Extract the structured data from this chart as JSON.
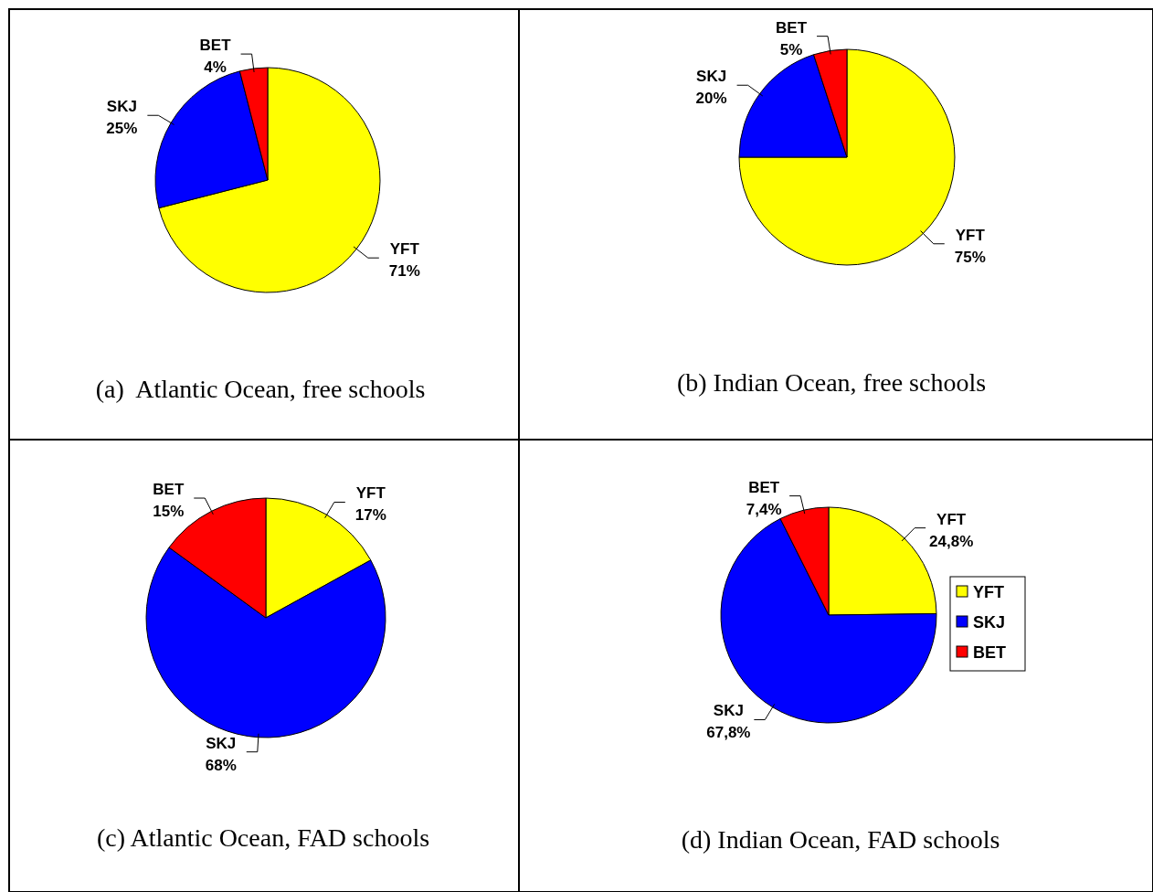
{
  "chart_data": [
    {
      "type": "pie",
      "title": "(a)  Atlantic Ocean, free schools",
      "categories": [
        "YFT",
        "SKJ",
        "BET"
      ],
      "values": [
        71,
        25,
        4
      ],
      "value_labels": [
        "71%",
        "25%",
        "4%"
      ],
      "colors": [
        "#ffff00",
        "#0000ff",
        "#ff0000"
      ],
      "legend": false
    },
    {
      "type": "pie",
      "title": "(b) Indian Ocean, free schools",
      "categories": [
        "YFT",
        "SKJ",
        "BET"
      ],
      "values": [
        75,
        20,
        5
      ],
      "value_labels": [
        "75%",
        "20%",
        "5%"
      ],
      "colors": [
        "#ffff00",
        "#0000ff",
        "#ff0000"
      ],
      "legend": false
    },
    {
      "type": "pie",
      "title": "(c) Atlantic Ocean, FAD schools",
      "categories": [
        "YFT",
        "SKJ",
        "BET"
      ],
      "values": [
        17,
        68,
        15
      ],
      "value_labels": [
        "17%",
        "68%",
        "15%"
      ],
      "colors": [
        "#ffff00",
        "#0000ff",
        "#ff0000"
      ],
      "legend": false
    },
    {
      "type": "pie",
      "title": "(d) Indian Ocean, FAD schools",
      "categories": [
        "YFT",
        "SKJ",
        "BET"
      ],
      "values": [
        24.8,
        67.8,
        7.4
      ],
      "value_labels": [
        "24,8%",
        "67,8%",
        "7,4%"
      ],
      "colors": [
        "#ffff00",
        "#0000ff",
        "#ff0000"
      ],
      "legend": "right"
    }
  ]
}
